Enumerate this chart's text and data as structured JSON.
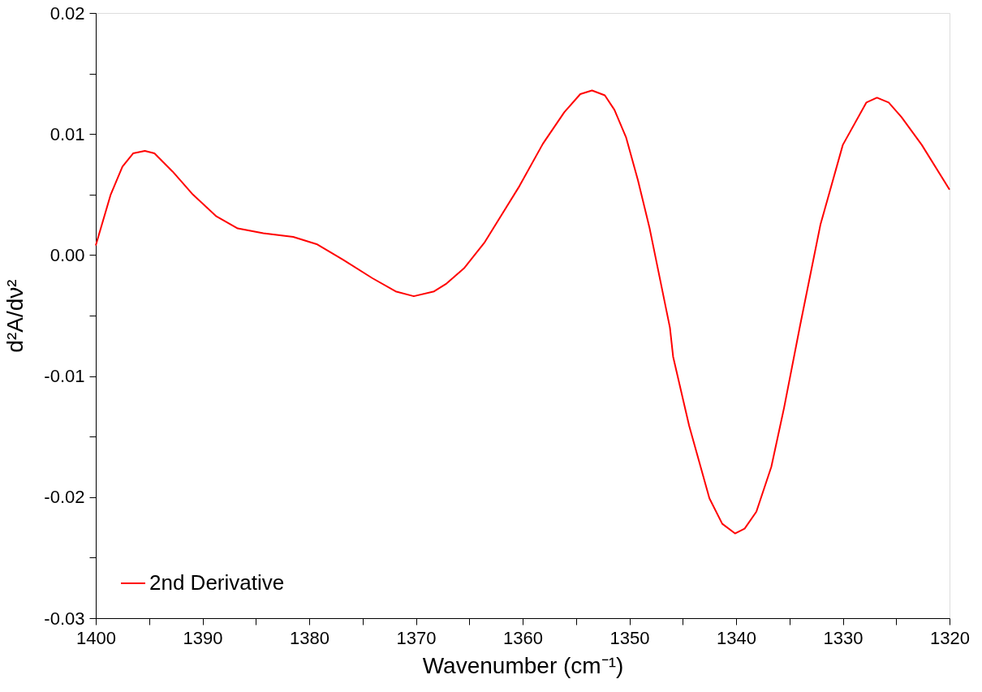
{
  "chart_data": {
    "type": "line",
    "xlabel": "Wavenumber (cm⁻¹)",
    "ylabel": "d²A/dν²",
    "xlim": [
      1400,
      1320
    ],
    "ylim": [
      -0.03,
      0.02
    ],
    "xticks": [
      1400,
      {
        "value": 1395,
        "label": null
      },
      1390,
      {
        "value": 1385,
        "label": null
      },
      1380,
      {
        "value": 1375,
        "label": null
      },
      1370,
      {
        "value": 1365,
        "label": null
      },
      1360,
      {
        "value": 1355,
        "label": null
      },
      1350,
      {
        "value": 1345,
        "label": null
      },
      1340,
      {
        "value": 1335,
        "label": null
      },
      1330,
      {
        "value": 1325,
        "label": null
      },
      1320
    ],
    "yticks": [
      {
        "value": -0.03,
        "label": "-0.03"
      },
      {
        "value": -0.025,
        "label": null
      },
      {
        "value": -0.02,
        "label": "-0.02"
      },
      {
        "value": -0.015,
        "label": null
      },
      {
        "value": -0.01,
        "label": "-0.01"
      },
      {
        "value": -0.005,
        "label": null
      },
      {
        "value": 0,
        "label": "0.00"
      },
      {
        "value": 0.005,
        "label": null
      },
      {
        "value": 0.01,
        "label": "0.01"
      },
      {
        "value": 0.015,
        "label": null
      },
      {
        "value": 0.02,
        "label": "0.02"
      }
    ],
    "grid": false,
    "legend": "bottom left",
    "line_style": "solid",
    "marker": "none",
    "series": [
      {
        "name": "2nd Derivative",
        "color": "#ff0000",
        "x": [
          1400,
          1398.6,
          1397.5,
          1396.5,
          1395.4,
          1394.5,
          1392.8,
          1390.9,
          1388.7,
          1386.7,
          1384.3,
          1381.5,
          1379.3,
          1376.8,
          1374.1,
          1371.9,
          1370.2,
          1368.3,
          1367.2,
          1365.5,
          1363.6,
          1360.3,
          1358.1,
          1356.1,
          1354.6,
          1353.5,
          1352.3,
          1351.4,
          1350.3,
          1349.2,
          1348.1,
          1346.2,
          1345.9,
          1344.4,
          1342.5,
          1341.3,
          1340.1,
          1339.2,
          1338.1,
          1336.7,
          1335.5,
          1334.0,
          1332.1,
          1330.0,
          1327.8,
          1326.8,
          1325.7,
          1324.5,
          1322.6,
          1320
        ],
        "values": [
          0.0008,
          0.005,
          0.0073,
          0.0084,
          0.0086,
          0.0084,
          0.0069,
          0.005,
          0.0032,
          0.0022,
          0.0018,
          0.0015,
          0.0009,
          -0.0004,
          -0.0019,
          -0.003,
          -0.0034,
          -0.003,
          -0.0024,
          -0.0011,
          0.001,
          0.0057,
          0.0092,
          0.0118,
          0.0133,
          0.0136,
          0.0132,
          0.012,
          0.0097,
          0.0062,
          0.0022,
          -0.006,
          -0.0084,
          -0.0141,
          -0.0201,
          -0.0222,
          -0.023,
          -0.0226,
          -0.0212,
          -0.0175,
          -0.0126,
          -0.0058,
          0.0025,
          0.0091,
          0.0126,
          0.013,
          0.0126,
          0.0114,
          0.0091,
          0.0054
        ]
      }
    ]
  }
}
